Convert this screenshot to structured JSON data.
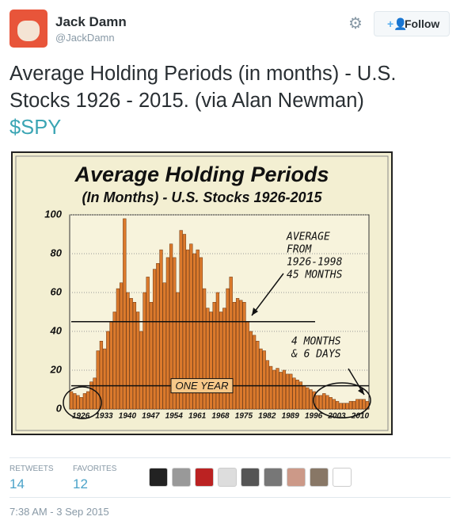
{
  "header": {
    "name": "Jack Damn",
    "handle": "@JackDamn",
    "follow": "Follow"
  },
  "tweet": {
    "text": "Average Holding Periods (in months) - U.S. Stocks 1926 - 2015. (via Alan Newman)",
    "cashtag": "$SPY"
  },
  "chart_data": {
    "type": "bar",
    "title": "Average Holding Periods",
    "subtitle": "(In Months) - U.S. Stocks 1926-2015",
    "categories": [
      "1926",
      null,
      null,
      null,
      null,
      null,
      null,
      "1933",
      null,
      null,
      null,
      null,
      null,
      null,
      "1940",
      null,
      null,
      null,
      null,
      null,
      null,
      "1947",
      null,
      null,
      null,
      null,
      null,
      null,
      "1954",
      null,
      null,
      null,
      null,
      null,
      null,
      "1961",
      null,
      null,
      null,
      null,
      null,
      null,
      "1968",
      null,
      null,
      null,
      null,
      null,
      null,
      "1975",
      null,
      null,
      null,
      null,
      null,
      null,
      "1982",
      null,
      null,
      null,
      null,
      null,
      null,
      "1989",
      null,
      null,
      null,
      null,
      null,
      null,
      "1996",
      null,
      null,
      null,
      null,
      null,
      null,
      "2003",
      null,
      null,
      null,
      null,
      null,
      null,
      "2010",
      null,
      null,
      null,
      null,
      null
    ],
    "values": [
      9,
      8,
      7,
      6,
      8,
      9,
      14,
      16,
      30,
      35,
      31,
      40,
      45,
      50,
      62,
      65,
      98,
      60,
      57,
      55,
      50,
      40,
      60,
      68,
      55,
      72,
      75,
      82,
      65,
      78,
      85,
      78,
      60,
      92,
      90,
      82,
      85,
      80,
      82,
      78,
      62,
      52,
      50,
      55,
      60,
      50,
      52,
      62,
      68,
      55,
      57,
      56,
      55,
      45,
      40,
      38,
      35,
      31,
      30,
      25,
      22,
      20,
      21,
      19,
      20,
      18,
      18,
      16,
      15,
      14,
      12,
      11,
      10,
      9,
      7,
      7,
      8,
      7,
      6,
      5,
      4,
      3,
      3,
      3,
      4,
      4,
      5,
      5,
      5,
      4
    ],
    "color": "#dc7a2c",
    "ylim": [
      0,
      100
    ],
    "yticks": [
      0,
      20,
      40,
      60,
      80,
      100
    ],
    "grid": true,
    "reference_lines": [
      {
        "value": 45
      },
      {
        "value": 12,
        "label": "ONE YEAR"
      }
    ],
    "annotations": [
      {
        "lines": [
          "AVERAGE",
          "FROM",
          "1926-1998",
          "45 MONTHS"
        ]
      },
      {
        "lines": [
          "4 MONTHS",
          "& 6 DAYS"
        ]
      }
    ]
  },
  "stats": [
    {
      "label": "RETWEETS",
      "value": 14
    },
    {
      "label": "FAVORITES",
      "value": 12
    }
  ],
  "timestamp": "7:38 AM - 3 Sep 2015"
}
